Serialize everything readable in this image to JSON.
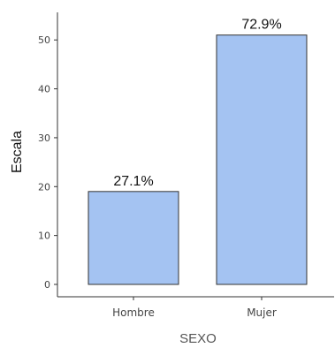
{
  "chart_data": {
    "type": "bar",
    "title": "",
    "xlabel": "SEXO",
    "ylabel": "Escala",
    "categories": [
      "Hombre",
      "Mujer"
    ],
    "values": [
      19,
      51
    ],
    "data_labels": [
      "27.1%",
      "72.9%"
    ],
    "yticks": [
      0,
      10,
      20,
      30,
      40,
      50
    ],
    "ytick_labels": [
      "0",
      "10",
      "20",
      "30",
      "40",
      "50"
    ],
    "ylim": [
      0,
      56
    ],
    "grid": false,
    "legend": "none",
    "bar_color": "#a4c3f2",
    "bar_edge_color": "#333333"
  }
}
